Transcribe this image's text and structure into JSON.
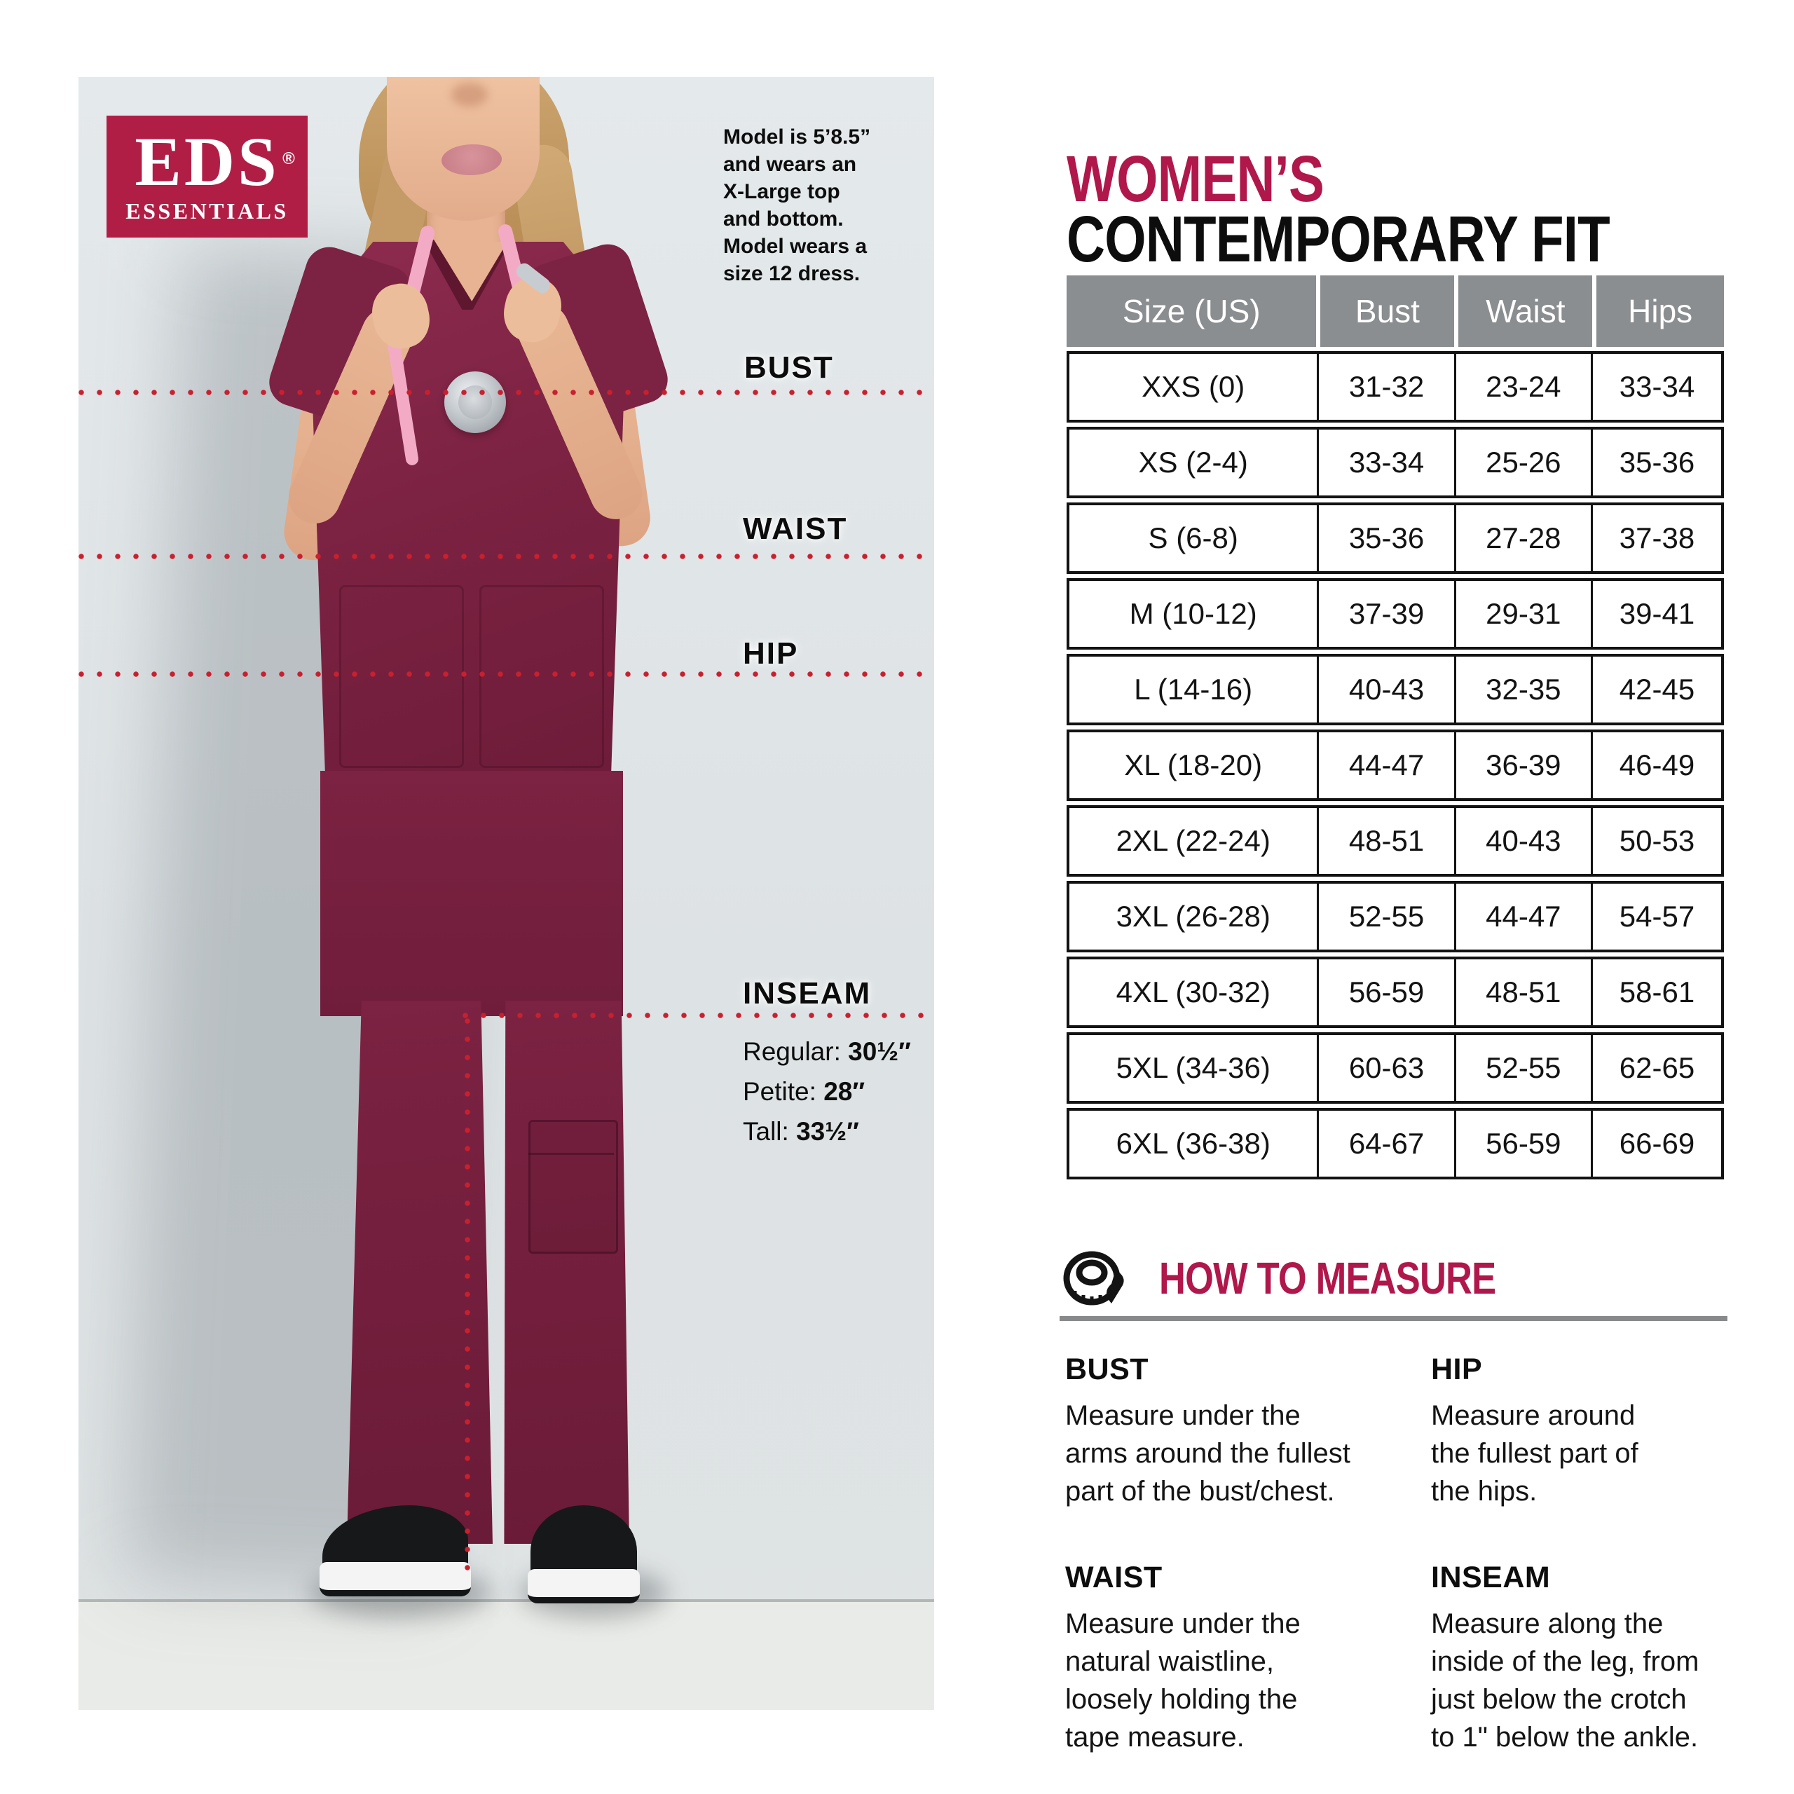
{
  "brand": {
    "name": "EDS",
    "sub": "ESSENTIALS",
    "registered": "®"
  },
  "photo": {
    "model_info": "Model is 5’8.5”\nand wears an\nX-Large top\nand bottom.\nModel wears a\nsize 12 dress.",
    "labels": {
      "bust": "BUST",
      "waist": "WAIST",
      "hip": "HIP",
      "inseam": "INSEAM"
    },
    "inseam_details": [
      {
        "label": "Regular: ",
        "value": "30½″"
      },
      {
        "label": "Petite: ",
        "value": "28″"
      },
      {
        "label": "Tall: ",
        "value": "33½″"
      }
    ]
  },
  "title": {
    "line1": "WOMEN’S",
    "line2": "CONTEMPORARY FIT"
  },
  "size_table": {
    "headers": [
      "Size (US)",
      "Bust",
      "Waist",
      "Hips"
    ],
    "rows": [
      [
        "XXS (0)",
        "31-32",
        "23-24",
        "33-34"
      ],
      [
        "XS (2-4)",
        "33-34",
        "25-26",
        "35-36"
      ],
      [
        "S (6-8)",
        "35-36",
        "27-28",
        "37-38"
      ],
      [
        "M (10-12)",
        "37-39",
        "29-31",
        "39-41"
      ],
      [
        "L (14-16)",
        "40-43",
        "32-35",
        "42-45"
      ],
      [
        "XL (18-20)",
        "44-47",
        "36-39",
        "46-49"
      ],
      [
        "2XL (22-24)",
        "48-51",
        "40-43",
        "50-53"
      ],
      [
        "3XL (26-28)",
        "52-55",
        "44-47",
        "54-57"
      ],
      [
        "4XL (30-32)",
        "56-59",
        "48-51",
        "58-61"
      ],
      [
        "5XL (34-36)",
        "60-63",
        "52-55",
        "62-65"
      ],
      [
        "6XL (36-38)",
        "64-67",
        "56-59",
        "66-69"
      ]
    ]
  },
  "how_to_measure": {
    "title": "HOW TO MEASURE",
    "icon": "measuring-tape-icon",
    "sections": [
      {
        "heading": "BUST",
        "text": "Measure under the\narms around the fullest\npart of the bust/chest."
      },
      {
        "heading": "WAIST",
        "text": "Measure under the\nnatural waistline,\nloosely holding the\ntape measure."
      },
      {
        "heading": "HIP",
        "text": "Measure around\nthe fullest part of\nthe hips."
      },
      {
        "heading": "INSEAM",
        "text": "Measure along the\ninside of the leg, from\njust below the crotch\nto 1\" below the ankle."
      }
    ]
  },
  "colors": {
    "brand_crimson": "#B01E46",
    "heading_crimson": "#B0174B",
    "table_header_gray": "#8B8E90",
    "dotted_line_red": "#C8202F",
    "photo_background": "#DFE4E6",
    "scrubs_wine": "#7C2242"
  }
}
